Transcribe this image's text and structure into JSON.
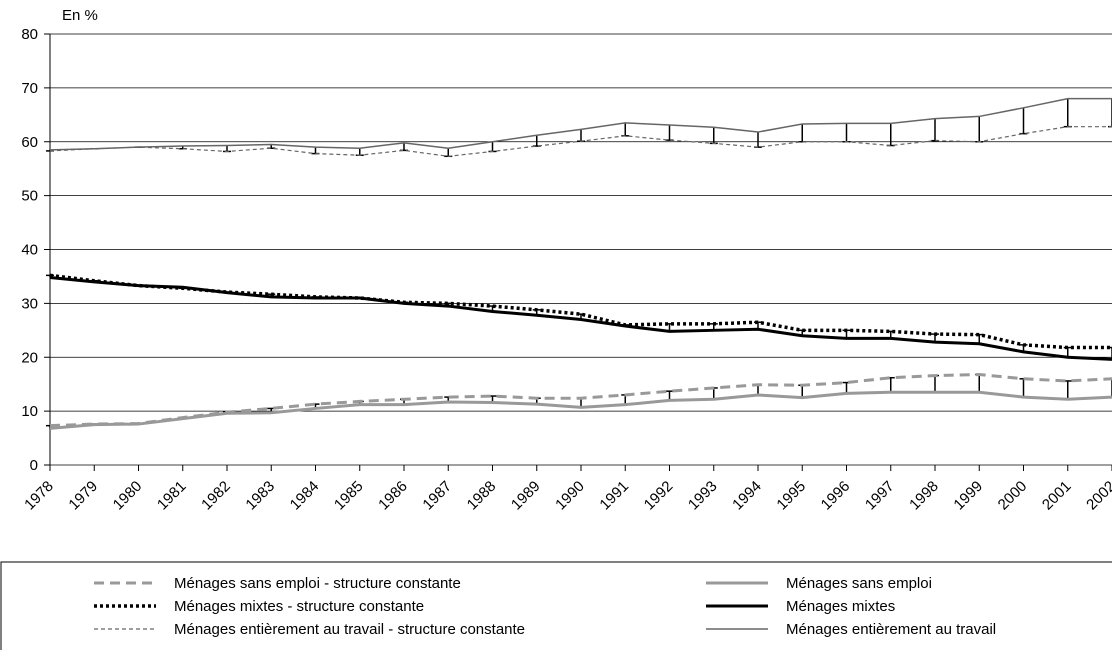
{
  "chart_data": {
    "type": "line",
    "y_axis_label": "En %",
    "categories": [
      "1978",
      "1979",
      "1980",
      "1981",
      "1982",
      "1983",
      "1984",
      "1985",
      "1986",
      "1987",
      "1988",
      "1989",
      "1990",
      "1991",
      "1992",
      "1993",
      "1994",
      "1995",
      "1996",
      "1997",
      "1998",
      "1999",
      "2000",
      "2001",
      "2002"
    ],
    "ylim": [
      0,
      80
    ],
    "yticks": [
      0,
      10,
      20,
      30,
      40,
      50,
      60,
      70,
      80
    ],
    "grid": true,
    "series": [
      {
        "name": "Ménages sans emploi - structure constante",
        "color": "#999999",
        "width": 3,
        "style": "dashed",
        "values": [
          7.3,
          7.6,
          7.7,
          8.8,
          9.8,
          10.5,
          11.3,
          11.8,
          12.2,
          12.6,
          12.8,
          12.4,
          12.4,
          13,
          13.7,
          14.3,
          14.9,
          14.8,
          15.3,
          16.2,
          16.6,
          16.8,
          16,
          15.6,
          16
        ]
      },
      {
        "name": "Ménages mixtes - structure constante",
        "color": "#000000",
        "width": 3.5,
        "style": "dotted",
        "values": [
          35.2,
          34.2,
          33.3,
          32.8,
          32.1,
          31.7,
          31.2,
          31,
          30.2,
          30,
          29.5,
          28.8,
          28,
          26,
          26.2,
          26.2,
          26.5,
          25,
          25,
          24.8,
          24.3,
          24.2,
          22.3,
          21.8,
          21.8
        ]
      },
      {
        "name": "Ménages entièrement au travail - structure constante",
        "color": "#666666",
        "width": 1.2,
        "style": "dashed",
        "values": [
          58.3,
          58.7,
          59,
          58.7,
          58.2,
          58.8,
          57.8,
          57.5,
          58.4,
          57.3,
          58.2,
          59.2,
          60.1,
          61.1,
          60.3,
          59.7,
          59,
          60,
          60,
          59.3,
          60.2,
          60,
          61.5,
          62.8,
          62.8
        ]
      },
      {
        "name": "Ménages sans emploi",
        "color": "#999999",
        "width": 3,
        "style": "solid",
        "values": [
          6.8,
          7.5,
          7.6,
          8.6,
          9.6,
          9.7,
          10.5,
          11.2,
          11.2,
          11.7,
          11.6,
          11.3,
          10.7,
          11.2,
          12,
          12.2,
          13,
          12.5,
          13.3,
          13.5,
          13.5,
          13.5,
          12.6,
          12.2,
          12.6
        ]
      },
      {
        "name": "Ménages mixtes",
        "color": "#000000",
        "width": 3,
        "style": "solid",
        "values": [
          34.8,
          34,
          33.3,
          33,
          32,
          31.2,
          31,
          31,
          30,
          29.5,
          28.5,
          27.8,
          27,
          25.8,
          24.8,
          25,
          25.2,
          24,
          23.5,
          23.5,
          22.8,
          22.5,
          21,
          20,
          19.6
        ]
      },
      {
        "name": "Ménages entièrement au travail",
        "color": "#666666",
        "width": 1.5,
        "style": "solid",
        "values": [
          58.5,
          58.7,
          59,
          59.2,
          59.3,
          59.5,
          59,
          58.8,
          59.8,
          58.8,
          60,
          61.2,
          62.3,
          63.5,
          63.1,
          62.7,
          61.8,
          63.3,
          63.4,
          63.4,
          64.3,
          64.7,
          66.3,
          68,
          68
        ]
      }
    ]
  }
}
